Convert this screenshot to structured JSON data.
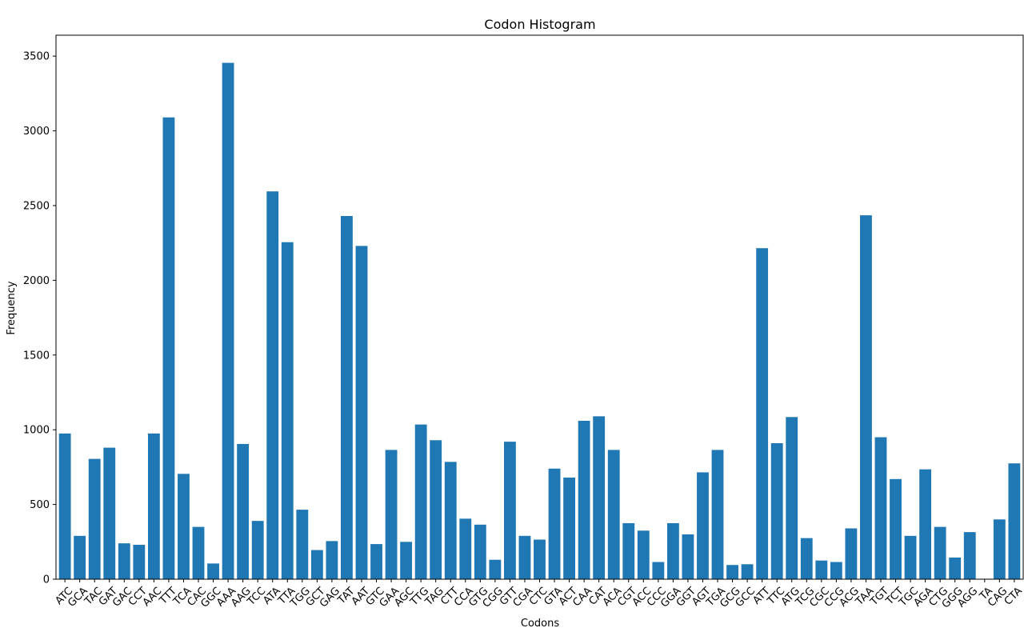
{
  "chart_data": {
    "type": "bar",
    "title": "Codon Histogram",
    "xlabel": "Codons",
    "ylabel": "Frequency",
    "ylim": [
      0,
      3640
    ],
    "yticks": [
      0,
      500,
      1000,
      1500,
      2000,
      2500,
      3000,
      3500
    ],
    "bar_color": "#1f77b4",
    "grid": false,
    "categories": [
      "ATC",
      "GCA",
      "TAC",
      "GAT",
      "GAC",
      "CCT",
      "AAC",
      "TTT",
      "TCA",
      "CAC",
      "GGC",
      "AAA",
      "AAG",
      "TCC",
      "ATA",
      "TTA",
      "TGG",
      "GCT",
      "GAG",
      "TAT",
      "AAT",
      "GTC",
      "GAA",
      "AGC",
      "TTG",
      "TAG",
      "CTT",
      "CCA",
      "GTG",
      "CGG",
      "GTT",
      "CGA",
      "CTC",
      "GTA",
      "ACT",
      "CAA",
      "CAT",
      "ACA",
      "CGT",
      "ACC",
      "CCC",
      "GGA",
      "GGT",
      "AGT",
      "TGA",
      "GCG",
      "GCC",
      "ATT",
      "TTC",
      "ATG",
      "TCG",
      "CGC",
      "CCG",
      "ACG",
      "TAA",
      "TGT",
      "TCT",
      "TGC",
      "AGA",
      "CTG",
      "GGG",
      "AGG",
      "TA",
      "CAG",
      "CTA"
    ],
    "values": [
      975,
      290,
      805,
      880,
      240,
      230,
      975,
      3090,
      705,
      350,
      105,
      3455,
      905,
      390,
      2595,
      2255,
      465,
      195,
      255,
      2430,
      2230,
      235,
      865,
      250,
      1035,
      930,
      785,
      405,
      365,
      130,
      920,
      290,
      265,
      740,
      680,
      1060,
      1090,
      865,
      375,
      325,
      115,
      375,
      300,
      715,
      865,
      95,
      100,
      2215,
      910,
      1085,
      275,
      125,
      115,
      340,
      2435,
      950,
      670,
      290,
      735,
      350,
      145,
      315,
      3,
      400,
      775
    ]
  }
}
